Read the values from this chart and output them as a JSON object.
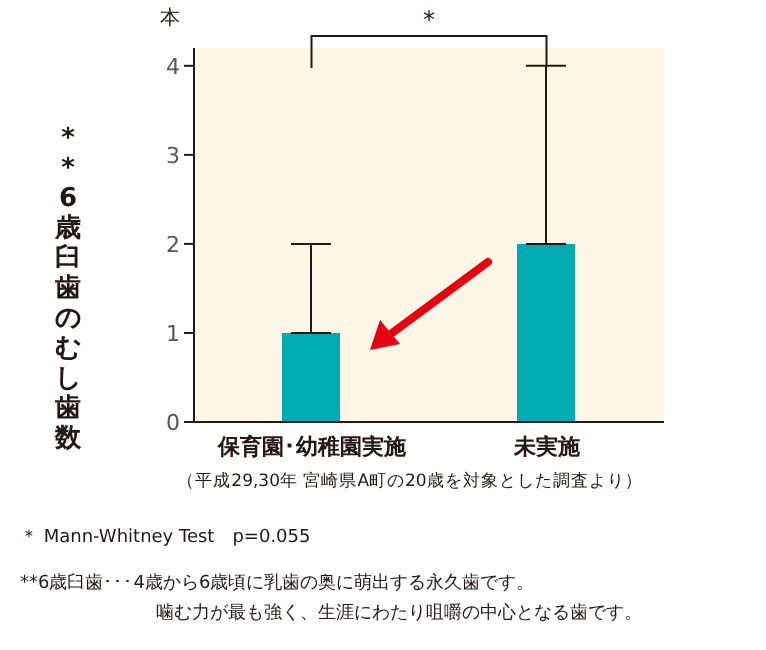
{
  "chart_data": {
    "type": "bar",
    "categories": [
      "保育園･幼稚園実施",
      "未実施"
    ],
    "values": [
      1,
      2
    ],
    "errors": [
      [
        1,
        2
      ],
      [
        2,
        4
      ]
    ],
    "color": "#00acb4",
    "ylabel": "**6歳臼歯のむし歯数",
    "ylim": [
      0,
      4.2
    ],
    "yticks": [
      0,
      1,
      2,
      3,
      4
    ],
    "grid": false,
    "legend": false,
    "annotations": [
      "本",
      "*",
      "（平成29,30年 宮崎県A町の20歳を対象とした調査より）",
      "＊ Mann-Whitney Test　p=0.055",
      "**6歳臼歯･･･4歳から6歳頃に乳歯の奥に萌出する永久歯です。",
      "噛む力が最も強く、生涯にわたり咀嚼の中心となる歯です。"
    ]
  }
}
